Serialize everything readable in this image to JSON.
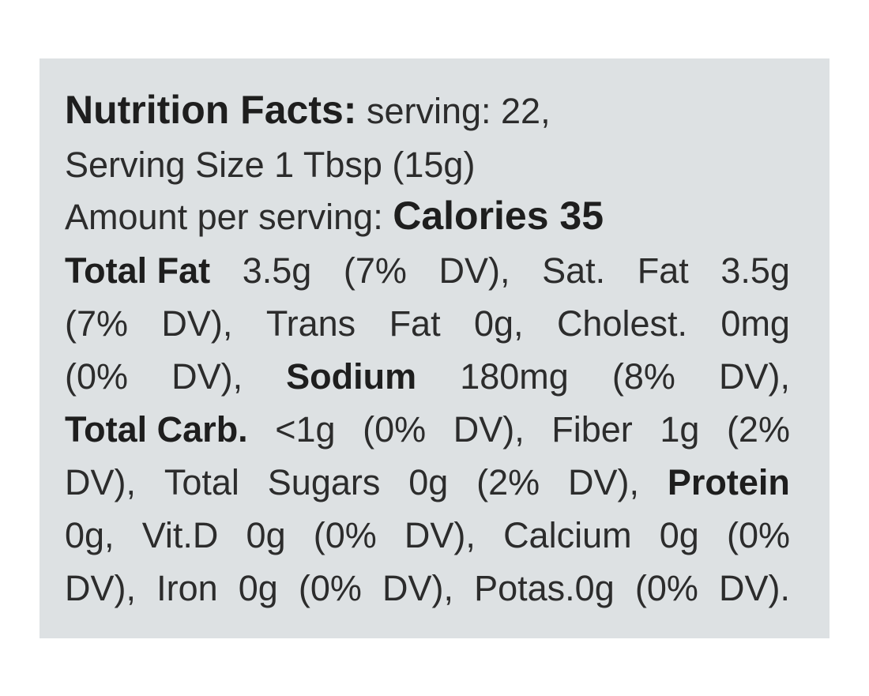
{
  "label": {
    "title": "Nutrition Facts:",
    "servings": "serving: 22,",
    "serving_size": "Serving Size 1 Tbsp (15g)",
    "amount_per_serving": "Amount per serving:",
    "calories": "Calories 35",
    "lines": [
      [
        "Total Fat",
        "3.5g",
        "(7%",
        "DV),",
        "Sat.",
        "Fat",
        "3.5g"
      ],
      [
        "(7%",
        "DV),",
        "Trans",
        "Fat",
        "0g,",
        "Cholest.",
        "0mg"
      ],
      [
        "(0%",
        "DV),",
        "Sodium",
        "180mg",
        "(8%",
        "DV),"
      ],
      [
        "Total Carb.",
        "<1g",
        "(0%",
        "DV),",
        "Fiber",
        "1g",
        "(2%"
      ],
      [
        "DV),",
        "Total",
        "Sugars",
        "0g",
        "(2%",
        "DV),",
        "Protein"
      ],
      [
        "0g,",
        "Vit.D",
        "0g",
        "(0%",
        "DV),",
        "Calcium",
        "0g",
        "(0%"
      ],
      [
        "DV),",
        "Iron",
        "0g",
        "(0%",
        "DV),",
        "Potas.0g",
        "(0%",
        "DV)."
      ]
    ]
  }
}
